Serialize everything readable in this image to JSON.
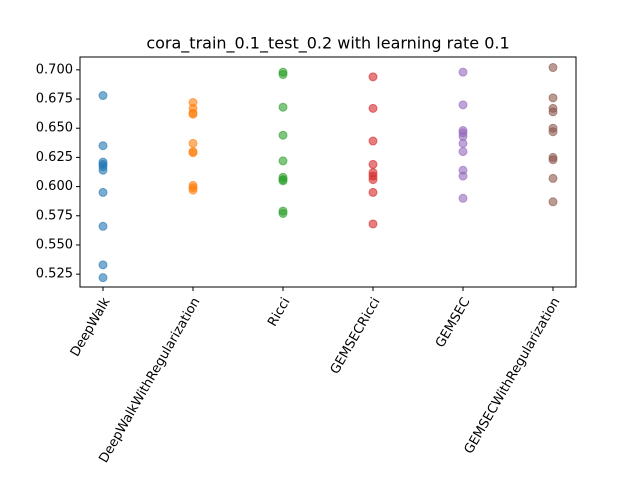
{
  "chart_data": {
    "type": "scatter",
    "title": "cora_train_0.1_test_0.2 with learning rate 0.1",
    "categories": [
      "DeepWalk",
      "DeepWalkWithRegularization",
      "Ricci",
      "GEMSECRicci",
      "GEMSEC",
      "GEMSECWithRegularization"
    ],
    "colors": [
      "#1f77b4",
      "#ff7f0e",
      "#2ca02c",
      "#d62728",
      "#9467bd",
      "#8c564b"
    ],
    "values": [
      [
        0.678,
        0.635,
        0.621,
        0.619,
        0.617,
        0.614,
        0.595,
        0.566,
        0.533,
        0.522
      ],
      [
        0.672,
        0.667,
        0.663,
        0.662,
        0.637,
        0.63,
        0.629,
        0.601,
        0.599,
        0.597
      ],
      [
        0.698,
        0.696,
        0.668,
        0.644,
        0.622,
        0.608,
        0.606,
        0.605,
        0.579,
        0.577
      ],
      [
        0.694,
        0.667,
        0.639,
        0.619,
        0.612,
        0.609,
        0.606,
        0.595,
        0.568
      ],
      [
        0.698,
        0.67,
        0.648,
        0.646,
        0.643,
        0.637,
        0.63,
        0.614,
        0.609,
        0.59
      ],
      [
        0.702,
        0.676,
        0.667,
        0.664,
        0.65,
        0.647,
        0.625,
        0.623,
        0.607,
        0.587
      ]
    ],
    "ylim": [
      0.514,
      0.711
    ],
    "yticks": [
      0.525,
      {
        "value": 0.55,
        "label": "0.550"
      },
      0.575,
      {
        "value": 0.6,
        "label": "0.600"
      },
      0.625,
      {
        "value": 0.65,
        "label": "0.650"
      },
      0.675,
      {
        "value": 0.7,
        "label": "0.700"
      }
    ]
  }
}
